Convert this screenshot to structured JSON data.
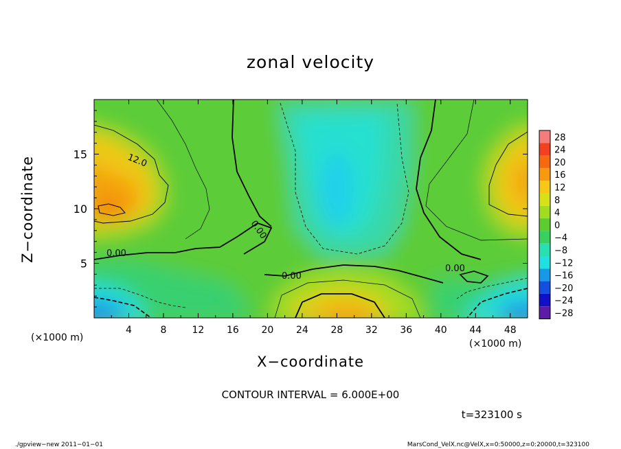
{
  "chart_data": {
    "type": "heatmap",
    "title": "zonal velocity",
    "xlabel": "X−coordinate",
    "ylabel": "Z−coordinate",
    "x_unit": "(×1000 m)",
    "y_unit": "(×1000 m)",
    "xlim": [
      0,
      50
    ],
    "ylim": [
      0,
      20
    ],
    "x_ticks": [
      "4",
      "8",
      "12",
      "16",
      "20",
      "24",
      "28",
      "32",
      "36",
      "40",
      "44",
      "48"
    ],
    "y_ticks": [
      "5",
      "10",
      "15"
    ],
    "colorbar": {
      "labels": [
        "28",
        "24",
        "20",
        "16",
        "12",
        "8",
        "4",
        "0",
        "−4",
        "−8",
        "−12",
        "−16",
        "−20",
        "−24",
        "−28"
      ],
      "colors": [
        "#f47c7c",
        "#f24020",
        "#f56a10",
        "#f89a10",
        "#f8c818",
        "#d8e018",
        "#a0dc20",
        "#5ccc30",
        "#38d060",
        "#28e0b0",
        "#20e0e0",
        "#1898e8",
        "#1450e0",
        "#1010c8",
        "#5c1ca8"
      ]
    },
    "contour_labels": [
      "12.0",
      "0.00",
      "0.00",
      "0.00",
      "0.00"
    ],
    "contour_interval": "CONTOUR INTERVAL = 6.000E+00"
  },
  "time_label": "t=323100 s",
  "footer": {
    "left": "./gpview−new  2011−01−01",
    "right": "MarsCond_VelX.nc@VelX,x=0:50000,z=0:20000,t=323100"
  }
}
